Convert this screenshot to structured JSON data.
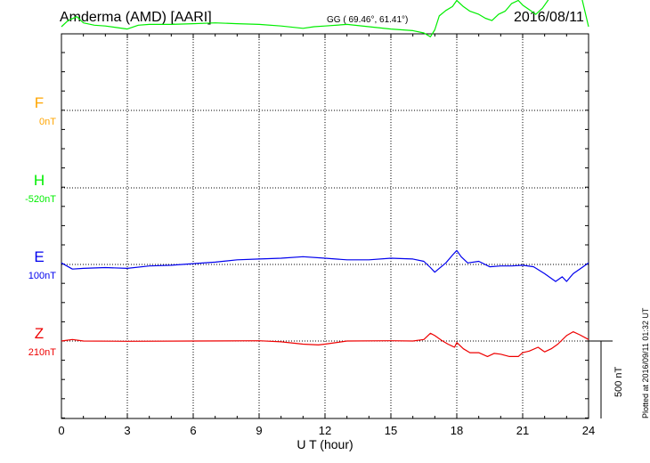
{
  "header": {
    "station": "Amderma (AMD)  [AARI]",
    "coords": "GG ( 69.46°,  61.41°)",
    "date": "2016/08/11"
  },
  "side_note": "Plotted at 2016/09/11 01:32 UT",
  "scale_label": "500 nT",
  "chart_data": {
    "type": "line",
    "xlabel": "U T (hour)",
    "xlim": [
      0,
      24
    ],
    "x_ticks": [
      "0",
      "3",
      "6",
      "9",
      "12",
      "15",
      "18",
      "21",
      "24"
    ],
    "grid": true,
    "unit": "nT",
    "series": [
      {
        "name": "F",
        "baseline_label": "0nT",
        "color": "#ffa500",
        "values": []
      },
      {
        "name": "H",
        "baseline_label": "-520nT",
        "color": "#00ee00",
        "values": [
          [
            0,
            520
          ],
          [
            0.3,
            560
          ],
          [
            0.7,
            585
          ],
          [
            1.0,
            545
          ],
          [
            1.5,
            530
          ],
          [
            2.0,
            525
          ],
          [
            3.0,
            505
          ],
          [
            3.5,
            530
          ],
          [
            4.0,
            535
          ],
          [
            5.0,
            535
          ],
          [
            6.0,
            540
          ],
          [
            7.0,
            545
          ],
          [
            8.0,
            540
          ],
          [
            9.0,
            535
          ],
          [
            10.0,
            525
          ],
          [
            11.0,
            510
          ],
          [
            11.5,
            520
          ],
          [
            12.0,
            525
          ],
          [
            13.0,
            535
          ],
          [
            14.0,
            520
          ],
          [
            15.0,
            505
          ],
          [
            16.0,
            495
          ],
          [
            16.5,
            480
          ],
          [
            16.8,
            455
          ],
          [
            17.0,
            500
          ],
          [
            17.2,
            590
          ],
          [
            17.5,
            625
          ],
          [
            17.8,
            650
          ],
          [
            18.0,
            690
          ],
          [
            18.3,
            650
          ],
          [
            18.6,
            620
          ],
          [
            19.0,
            600
          ],
          [
            19.3,
            575
          ],
          [
            19.6,
            560
          ],
          [
            19.9,
            600
          ],
          [
            20.2,
            620
          ],
          [
            20.5,
            670
          ],
          [
            20.8,
            690
          ],
          [
            21.0,
            660
          ],
          [
            21.3,
            630
          ],
          [
            21.6,
            600
          ],
          [
            21.9,
            640
          ],
          [
            22.2,
            700
          ],
          [
            22.5,
            770
          ],
          [
            22.8,
            820
          ],
          [
            23.1,
            840
          ],
          [
            23.4,
            780
          ],
          [
            23.7,
            700
          ],
          [
            24.0,
            520
          ]
        ]
      },
      {
        "name": "E",
        "baseline_label": "100nT",
        "color": "#0000ee",
        "values": [
          [
            0,
            110
          ],
          [
            0.5,
            70
          ],
          [
            1.0,
            75
          ],
          [
            2.0,
            80
          ],
          [
            3.0,
            75
          ],
          [
            4.0,
            90
          ],
          [
            5.0,
            95
          ],
          [
            6.0,
            105
          ],
          [
            7.0,
            115
          ],
          [
            8.0,
            130
          ],
          [
            9.0,
            135
          ],
          [
            10.0,
            140
          ],
          [
            11.0,
            150
          ],
          [
            12.0,
            140
          ],
          [
            13.0,
            130
          ],
          [
            14.0,
            130
          ],
          [
            15.0,
            140
          ],
          [
            16.0,
            135
          ],
          [
            16.5,
            120
          ],
          [
            16.8,
            80
          ],
          [
            17.0,
            50
          ],
          [
            17.2,
            75
          ],
          [
            17.5,
            110
          ],
          [
            17.8,
            160
          ],
          [
            18.0,
            190
          ],
          [
            18.2,
            150
          ],
          [
            18.5,
            110
          ],
          [
            19.0,
            120
          ],
          [
            19.5,
            85
          ],
          [
            20.0,
            90
          ],
          [
            20.5,
            90
          ],
          [
            21.0,
            95
          ],
          [
            21.5,
            85
          ],
          [
            22.0,
            40
          ],
          [
            22.5,
            -10
          ],
          [
            22.8,
            20
          ],
          [
            23.0,
            -10
          ],
          [
            23.3,
            40
          ],
          [
            23.6,
            70
          ],
          [
            24.0,
            110
          ]
        ]
      },
      {
        "name": "Z",
        "baseline_label": "210nT",
        "color": "#ee0000",
        "values": [
          [
            0,
            210
          ],
          [
            0.5,
            220
          ],
          [
            1.0,
            210
          ],
          [
            3.0,
            208
          ],
          [
            6.0,
            210
          ],
          [
            9.0,
            212
          ],
          [
            10.0,
            205
          ],
          [
            11.0,
            190
          ],
          [
            11.7,
            185
          ],
          [
            12.0,
            190
          ],
          [
            13.0,
            210
          ],
          [
            15.0,
            212
          ],
          [
            16.0,
            210
          ],
          [
            16.5,
            220
          ],
          [
            16.8,
            260
          ],
          [
            17.0,
            245
          ],
          [
            17.3,
            215
          ],
          [
            17.6,
            190
          ],
          [
            17.9,
            170
          ],
          [
            18.0,
            200
          ],
          [
            18.3,
            160
          ],
          [
            18.6,
            135
          ],
          [
            19.0,
            135
          ],
          [
            19.4,
            110
          ],
          [
            19.7,
            130
          ],
          [
            20.0,
            125
          ],
          [
            20.4,
            110
          ],
          [
            20.8,
            110
          ],
          [
            21.0,
            135
          ],
          [
            21.3,
            145
          ],
          [
            21.7,
            170
          ],
          [
            22.0,
            140
          ],
          [
            22.3,
            160
          ],
          [
            22.6,
            190
          ],
          [
            23.0,
            245
          ],
          [
            23.3,
            270
          ],
          [
            23.6,
            250
          ],
          [
            24.0,
            220
          ]
        ]
      }
    ]
  }
}
